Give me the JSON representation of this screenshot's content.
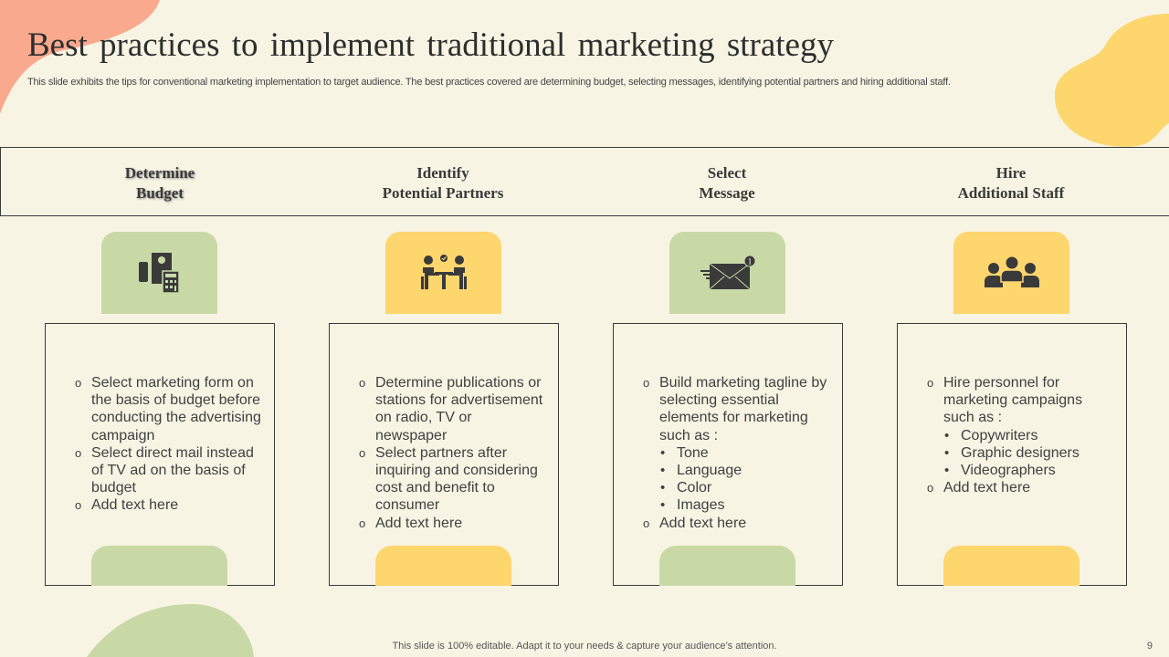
{
  "slide": {
    "title": "Best practices to implement traditional marketing strategy",
    "subtitle": "This slide exhibits the tips for conventional marketing implementation to target audience. The best practices covered are determining budget, selecting messages, identifying potential partners and hiring additional staff.",
    "footer": "This slide is 100% editable. Adapt it to your needs & capture your audience’s attention.",
    "page_number": "9"
  },
  "colors": {
    "background": "#F8F4E3",
    "green": "#C8D9A6",
    "yellow": "#FDD66E",
    "salmon": "#F9A98E",
    "text": "#3a3a3a"
  },
  "columns": [
    {
      "heading_line1": "Determine",
      "heading_line2": "Budget",
      "icon": "budget-calculator-icon",
      "color": "green",
      "items": [
        {
          "level": 1,
          "text": "Select marketing form on the basis of budget before conducting the advertising campaign"
        },
        {
          "level": 1,
          "text": "Select direct mail instead of TV ad on the basis of budget"
        },
        {
          "level": 1,
          "text": "Add text here"
        }
      ]
    },
    {
      "heading_line1": "Identify",
      "heading_line2": "Potential Partners",
      "icon": "meeting-partners-icon",
      "color": "yellow",
      "items": [
        {
          "level": 1,
          "text": "Determine publications or stations for advertisement on radio, TV or newspaper"
        },
        {
          "level": 1,
          "text": "Select partners after inquiring and considering cost and benefit to consumer"
        },
        {
          "level": 1,
          "text": "Add text here"
        }
      ]
    },
    {
      "heading_line1": "Select",
      "heading_line2": "Message",
      "icon": "email-notification-icon",
      "color": "green",
      "badge": "1",
      "items": [
        {
          "level": 1,
          "text": "Build marketing tagline by selecting  essential elements for marketing such as :"
        },
        {
          "level": 2,
          "text": "Tone"
        },
        {
          "level": 2,
          "text": "Language"
        },
        {
          "level": 2,
          "text": "Color"
        },
        {
          "level": 2,
          "text": "Images"
        },
        {
          "level": 1,
          "text": "Add text here"
        }
      ]
    },
    {
      "heading_line1": "Hire",
      "heading_line2": "Additional Staff",
      "icon": "team-group-icon",
      "color": "yellow",
      "items": [
        {
          "level": 1,
          "text": "Hire personnel for marketing campaigns such as :"
        },
        {
          "level": 2,
          "text": "Copywriters"
        },
        {
          "level": 2,
          "text": "Graphic designers"
        },
        {
          "level": 2,
          "text": "Videographers"
        },
        {
          "level": 1,
          "text": "Add text here"
        }
      ]
    }
  ]
}
